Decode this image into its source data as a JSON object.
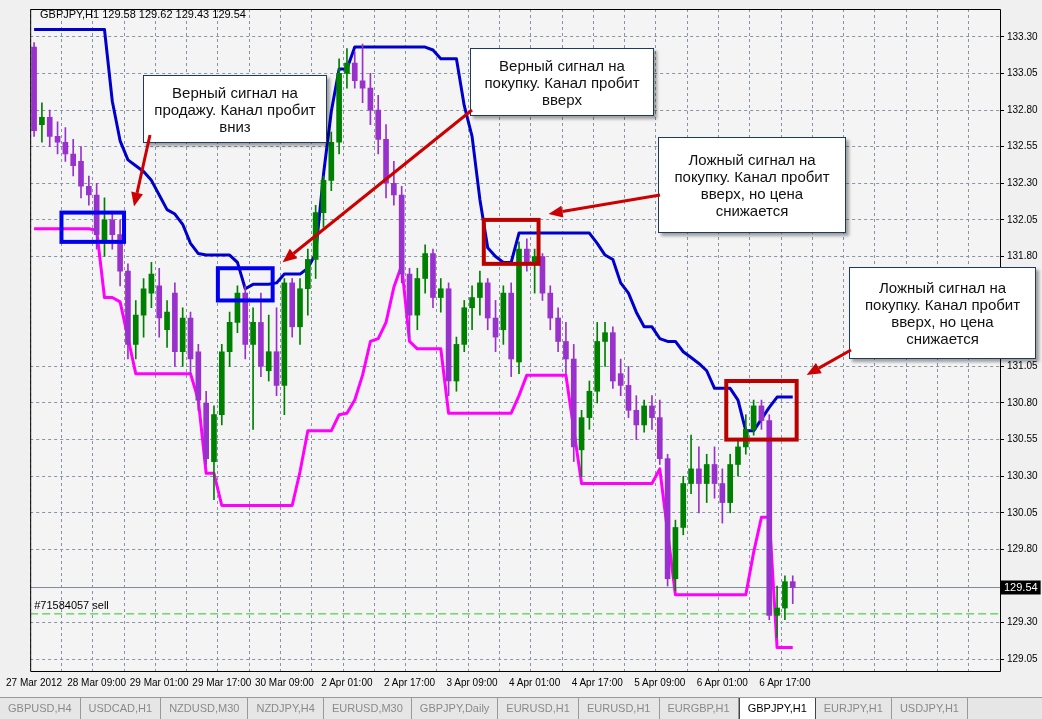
{
  "chart_data": {
    "type": "candlestick",
    "title": "GBPJPY,H1  129.58 129.62 129.43 129.54",
    "categories": [
      "27 Mar 2012",
      null,
      null,
      null,
      null,
      null,
      null,
      null,
      "28 Mar 09:00",
      null,
      null,
      null,
      null,
      null,
      null,
      null,
      "29 Mar 01:00",
      null,
      null,
      null,
      null,
      null,
      null,
      null,
      "29 Mar 17:00",
      null,
      null,
      null,
      null,
      null,
      null,
      null,
      "30 Mar 09:00",
      null,
      null,
      null,
      null,
      null,
      null,
      null,
      "2 Apr 01:00",
      null,
      null,
      null,
      null,
      null,
      null,
      null,
      "2 Apr 17:00",
      null,
      null,
      null,
      null,
      null,
      null,
      null,
      "3 Apr 09:00",
      null,
      null,
      null,
      null,
      null,
      null,
      null,
      "4 Apr 01:00",
      null,
      null,
      null,
      null,
      null,
      null,
      null,
      "4 Apr 17:00",
      null,
      null,
      null,
      null,
      null,
      null,
      null,
      "5 Apr 09:00",
      null,
      null,
      null,
      null,
      null,
      null,
      null,
      "6 Apr 01:00",
      null,
      null,
      null,
      null,
      null,
      null,
      null,
      "6 Apr 17:00",
      null,
      null,
      null,
      null,
      null,
      null,
      null,
      null,
      null,
      null,
      null,
      null,
      null,
      null,
      null,
      null,
      null,
      null,
      null,
      null,
      null,
      null,
      null,
      null,
      null,
      null,
      null
    ],
    "series": [
      {
        "type": "candlestick",
        "ohlc": [
          [
            133.23,
            133.26,
            132.62,
            132.66
          ],
          [
            132.7,
            132.85,
            132.58,
            132.75
          ],
          [
            132.75,
            132.8,
            132.55,
            132.62
          ],
          [
            132.62,
            132.72,
            132.5,
            132.58
          ],
          [
            132.58,
            132.68,
            132.45,
            132.5
          ],
          [
            132.5,
            132.6,
            132.35,
            132.42
          ],
          [
            132.45,
            132.55,
            132.2,
            132.28
          ],
          [
            132.28,
            132.35,
            132.15,
            132.22
          ],
          [
            132.22,
            132.3,
            131.85,
            131.95
          ],
          [
            131.9,
            132.2,
            131.8,
            132.05
          ],
          [
            132.05,
            132.1,
            131.85,
            131.95
          ],
          [
            131.95,
            132.05,
            131.6,
            131.7
          ],
          [
            131.7,
            131.75,
            131.1,
            131.2
          ],
          [
            131.2,
            131.5,
            131.1,
            131.4
          ],
          [
            131.4,
            131.65,
            131.25,
            131.58
          ],
          [
            131.55,
            131.76,
            131.45,
            131.68
          ],
          [
            131.6,
            131.72,
            131.25,
            131.38
          ],
          [
            131.3,
            131.5,
            131.18,
            131.42
          ],
          [
            131.55,
            131.62,
            131.05,
            131.15
          ],
          [
            131.15,
            131.45,
            131.05,
            131.38
          ],
          [
            131.38,
            131.42,
            131.0,
            131.1
          ],
          [
            131.15,
            131.2,
            130.75,
            130.82
          ],
          [
            130.8,
            130.88,
            130.38,
            130.42
          ],
          [
            130.4,
            130.78,
            130.14,
            130.72
          ],
          [
            130.72,
            131.2,
            130.65,
            131.15
          ],
          [
            131.15,
            131.42,
            131.05,
            131.35
          ],
          [
            131.35,
            131.6,
            131.28,
            131.55
          ],
          [
            131.55,
            131.6,
            131.1,
            131.2
          ],
          [
            131.2,
            131.45,
            130.62,
            131.35
          ],
          [
            131.35,
            131.55,
            130.98,
            131.05
          ],
          [
            131.02,
            131.4,
            130.95,
            131.15
          ],
          [
            131.15,
            131.45,
            130.85,
            130.92
          ],
          [
            130.92,
            131.65,
            130.72,
            131.62
          ],
          [
            131.62,
            131.65,
            131.25,
            131.32
          ],
          [
            131.32,
            131.65,
            131.2,
            131.58
          ],
          [
            131.58,
            131.85,
            131.4,
            131.78
          ],
          [
            131.78,
            132.15,
            131.65,
            132.1
          ],
          [
            132.1,
            132.35,
            132.0,
            132.32
          ],
          [
            132.32,
            132.65,
            132.25,
            132.58
          ],
          [
            132.58,
            133.15,
            132.5,
            133.05
          ],
          [
            133.05,
            133.22,
            132.95,
            133.12
          ],
          [
            133.12,
            133.2,
            132.95,
            133.0
          ],
          [
            133.0,
            133.25,
            132.85,
            132.95
          ],
          [
            132.95,
            133.05,
            132.7,
            132.8
          ],
          [
            132.8,
            132.9,
            132.5,
            132.6
          ],
          [
            132.6,
            132.7,
            132.2,
            132.3
          ],
          [
            132.3,
            132.45,
            132.15,
            132.22
          ],
          [
            132.22,
            132.28,
            131.62,
            131.68
          ],
          [
            131.68,
            131.72,
            131.25,
            131.4
          ],
          [
            131.4,
            131.72,
            131.3,
            131.65
          ],
          [
            131.65,
            131.88,
            131.55,
            131.82
          ],
          [
            131.82,
            131.85,
            131.45,
            131.52
          ],
          [
            131.52,
            131.65,
            131.42,
            131.58
          ],
          [
            131.58,
            131.62,
            130.85,
            130.95
          ],
          [
            130.95,
            131.25,
            130.88,
            131.2
          ],
          [
            131.2,
            131.5,
            131.15,
            131.45
          ],
          [
            131.45,
            131.6,
            131.3,
            131.52
          ],
          [
            131.52,
            131.7,
            131.4,
            131.62
          ],
          [
            131.62,
            131.65,
            131.3,
            131.38
          ],
          [
            131.38,
            131.5,
            131.15,
            131.25
          ],
          [
            131.3,
            131.6,
            131.2,
            131.55
          ],
          [
            131.55,
            131.62,
            130.98,
            131.1
          ],
          [
            131.08,
            131.9,
            131.0,
            131.85
          ],
          [
            131.85,
            131.92,
            131.7,
            131.75
          ],
          [
            131.75,
            131.85,
            131.55,
            131.8
          ],
          [
            131.8,
            131.82,
            131.5,
            131.55
          ],
          [
            131.55,
            131.6,
            131.3,
            131.38
          ],
          [
            131.38,
            131.45,
            131.15,
            131.22
          ],
          [
            131.22,
            131.35,
            131.0,
            131.1
          ],
          [
            131.1,
            131.2,
            130.4,
            130.5
          ],
          [
            130.48,
            130.75,
            130.3,
            130.7
          ],
          [
            130.7,
            130.95,
            130.62,
            130.88
          ],
          [
            130.88,
            131.35,
            130.8,
            131.22
          ],
          [
            131.22,
            131.35,
            131.05,
            131.28
          ],
          [
            131.28,
            131.32,
            130.9,
            130.95
          ],
          [
            131.0,
            131.1,
            130.85,
            130.92
          ],
          [
            130.92,
            131.05,
            130.7,
            130.75
          ],
          [
            130.75,
            130.85,
            130.55,
            130.65
          ],
          [
            130.65,
            130.82,
            130.6,
            130.78
          ],
          [
            130.78,
            130.85,
            130.62,
            130.7
          ],
          [
            130.7,
            130.82,
            130.38,
            130.42
          ],
          [
            130.42,
            130.45,
            129.55,
            129.6
          ],
          [
            129.6,
            130.0,
            129.52,
            129.95
          ],
          [
            129.95,
            130.3,
            129.9,
            130.25
          ],
          [
            130.25,
            130.58,
            130.18,
            130.35
          ],
          [
            130.35,
            130.5,
            130.05,
            130.25
          ],
          [
            130.25,
            130.45,
            130.12,
            130.38
          ],
          [
            130.38,
            130.5,
            130.15,
            130.25
          ],
          [
            130.25,
            130.35,
            129.98,
            130.12
          ],
          [
            130.12,
            130.45,
            130.05,
            130.38
          ],
          [
            130.38,
            130.55,
            130.3,
            130.5
          ],
          [
            130.5,
            130.72,
            130.45,
            130.62
          ],
          [
            130.62,
            130.82,
            130.58,
            130.78
          ],
          [
            130.78,
            130.82,
            130.62,
            130.68
          ],
          [
            130.68,
            130.72,
            129.32,
            129.35
          ],
          [
            129.35,
            129.55,
            129.2,
            129.4
          ],
          [
            129.4,
            129.62,
            129.32,
            129.58
          ],
          [
            129.58,
            129.62,
            129.43,
            129.54
          ],
          null,
          null,
          null,
          null,
          null,
          null,
          null,
          null,
          null,
          null,
          null,
          null,
          null,
          null,
          null,
          null,
          null,
          null,
          null,
          null,
          null,
          null,
          null,
          null,
          null,
          null
        ],
        "colors": [
          "#9932cc",
          "#008000",
          "#9932cc",
          "#9932cc",
          "#9932cc",
          "#9932cc",
          "#9932cc",
          "#9932cc",
          "#9932cc",
          "#008000",
          "#9932cc",
          "#9932cc",
          "#9932cc",
          "#008000",
          "#008000",
          "#008000",
          "#9932cc",
          "#008000",
          "#9932cc",
          "#008000",
          "#9932cc",
          "#9932cc",
          "#9932cc",
          "#008000",
          "#008000",
          "#008000",
          "#008000",
          "#9932cc",
          "#008000",
          "#9932cc",
          "#008000",
          "#9932cc",
          "#008000",
          "#9932cc",
          "#008000",
          "#008000",
          "#008000",
          "#008000",
          "#008000",
          "#008000",
          "#008000",
          "#9932cc",
          "#9932cc",
          "#9932cc",
          "#9932cc",
          "#9932cc",
          "#9932cc",
          "#9932cc",
          "#9932cc",
          "#008000",
          "#008000",
          "#9932cc",
          "#008000",
          "#9932cc",
          "#008000",
          "#008000",
          "#008000",
          "#008000",
          "#9932cc",
          "#9932cc",
          "#008000",
          "#9932cc",
          "#008000",
          "#9932cc",
          "#008000",
          "#9932cc",
          "#9932cc",
          "#9932cc",
          "#9932cc",
          "#9932cc",
          "#008000",
          "#008000",
          "#008000",
          "#008000",
          "#9932cc",
          "#9932cc",
          "#9932cc",
          "#9932cc",
          "#008000",
          "#9932cc",
          "#9932cc",
          "#9932cc",
          "#008000",
          "#008000",
          "#008000",
          "#9932cc",
          "#008000",
          "#9932cc",
          "#9932cc",
          "#008000",
          "#008000",
          "#008000",
          "#008000",
          "#9932cc",
          "#9932cc",
          "#008000",
          "#008000",
          "#9932cc",
          null,
          null,
          null,
          null,
          null,
          null,
          null,
          null,
          null,
          null,
          null,
          null,
          null,
          null,
          null,
          null,
          null,
          null,
          null,
          null,
          null,
          null,
          null,
          null,
          null,
          null
        ]
      },
      {
        "type": "line",
        "color": "#0000cc",
        "values": [
          133.35,
          133.35,
          133.35,
          133.35,
          133.35,
          133.35,
          133.35,
          133.35,
          133.35,
          133.35,
          132.86,
          132.59,
          132.46,
          132.42,
          132.38,
          132.32,
          132.22,
          132.12,
          132.09,
          132.02,
          131.89,
          131.82,
          131.81,
          131.81,
          131.81,
          131.81,
          131.76,
          131.58,
          131.61,
          131.61,
          131.61,
          131.62,
          131.68,
          131.68,
          131.68,
          131.72,
          131.82,
          132.36,
          132.79,
          133.08,
          133.08,
          133.23,
          133.23,
          133.23,
          133.23,
          133.23,
          133.23,
          133.23,
          133.23,
          133.23,
          133.23,
          133.21,
          133.15,
          133.15,
          133.15,
          132.83,
          132.62,
          132.19,
          131.86,
          131.8,
          131.76,
          131.76,
          131.96,
          131.96,
          131.96,
          131.96,
          131.96,
          131.96,
          131.96,
          131.96,
          131.96,
          131.96,
          131.89,
          131.81,
          131.78,
          131.62,
          131.55,
          131.42,
          131.32,
          131.32,
          131.24,
          131.22,
          131.22,
          131.15,
          131.11,
          131.07,
          131.02,
          130.9,
          130.9,
          130.9,
          130.82,
          130.61,
          130.61,
          130.69,
          130.77,
          130.84,
          130.84,
          130.84,
          null,
          null,
          null,
          null,
          null,
          null,
          null,
          null,
          null,
          null,
          null,
          null,
          null,
          null,
          null,
          null,
          null,
          null,
          null,
          null,
          null,
          null,
          null,
          null,
          null,
          null
        ]
      },
      {
        "type": "line",
        "color": "#ff00ff",
        "values": [
          131.99,
          131.99,
          131.99,
          131.99,
          131.99,
          131.99,
          131.99,
          131.99,
          131.98,
          131.52,
          131.52,
          131.49,
          null,
          131.0,
          131.0,
          131.0,
          131.0,
          131.0,
          131.0,
          131.0,
          131.0,
          130.82,
          130.32,
          130.32,
          130.1,
          130.1,
          130.1,
          130.1,
          130.1,
          130.1,
          130.1,
          130.1,
          130.1,
          130.1,
          130.33,
          130.61,
          130.61,
          130.61,
          130.61,
          130.72,
          130.73,
          130.82,
          130.99,
          131.22,
          131.24,
          131.35,
          131.59,
          131.74,
          131.22,
          131.17,
          131.17,
          131.17,
          131.17,
          130.73,
          130.73,
          130.73,
          130.73,
          130.73,
          130.73,
          130.73,
          130.73,
          130.73,
          130.85,
          130.99,
          130.99,
          130.99,
          130.99,
          130.99,
          130.99,
          null,
          130.25,
          130.25,
          130.25,
          130.25,
          130.25,
          130.25,
          130.25,
          130.25,
          130.25,
          130.25,
          130.35,
          null,
          129.49,
          129.49,
          129.49,
          129.49,
          129.49,
          129.49,
          129.49,
          129.49,
          129.49,
          129.49,
          129.78,
          130.02,
          130.02,
          129.13,
          129.13,
          129.13,
          null,
          null,
          null,
          null,
          null,
          null,
          null,
          null,
          null,
          null,
          null,
          null,
          null,
          null,
          null,
          null,
          null,
          null,
          null,
          null,
          null,
          null,
          null,
          null,
          null,
          null
        ]
      }
    ],
    "ylim": [
      128.97,
      133.49
    ],
    "yticks": [
      {
        "value": 129.05,
        "label": "129.05"
      },
      {
        "value": 129.3,
        "label": "129.30"
      },
      {
        "value": 129.8,
        "label": "129.80"
      },
      {
        "value": 130.05,
        "label": "130.05"
      },
      {
        "value": 130.3,
        "label": "130.30"
      },
      {
        "value": 130.55,
        "label": "130.55"
      },
      {
        "value": 130.8,
        "label": "130.80"
      },
      {
        "value": 131.05,
        "label": "131.05"
      },
      {
        "value": 131.8,
        "label": "131.80"
      },
      {
        "value": 132.05,
        "label": "132.05"
      },
      {
        "value": 132.3,
        "label": "132.30"
      },
      {
        "value": 132.55,
        "label": "132.55"
      },
      {
        "value": 132.8,
        "label": "132.80"
      },
      {
        "value": 133.05,
        "label": "133.05"
      },
      {
        "value": 133.3,
        "label": "133.30"
      }
    ],
    "ref_lines": [
      {
        "axis": "y",
        "value": 129.54,
        "label": "129.54",
        "color": "#7f8a99",
        "line_style": "solid"
      },
      {
        "axis": "y",
        "value": 129.36,
        "label": "#71584057 sell",
        "color": "#22cc22",
        "line_style": "dashed"
      }
    ],
    "annotations": [
      "Верный сигнал на продажу. Канал пробит вниз",
      "Верный сигнал на покупку. Канал пробит вверх",
      "Ложный сигнал на покупку. Канал пробит вверх, но цена снижается",
      "Ложный сигнал на покупку. Канал пробит вверх, но цена снижается",
      "GBPUSD,H4",
      "USDCAD,H1",
      "NZDUSD,M30",
      "NZDJPY,H4",
      "EURUSD,M30",
      "GBPJPY,Daily",
      "EURUSD,H1",
      "EURUSD,H1",
      "EURGBP,H1",
      "GBPJPY,H1",
      "EURJPY,H1",
      "USDJPY,H1"
    ],
    "grid": true,
    "legend": false
  }
}
